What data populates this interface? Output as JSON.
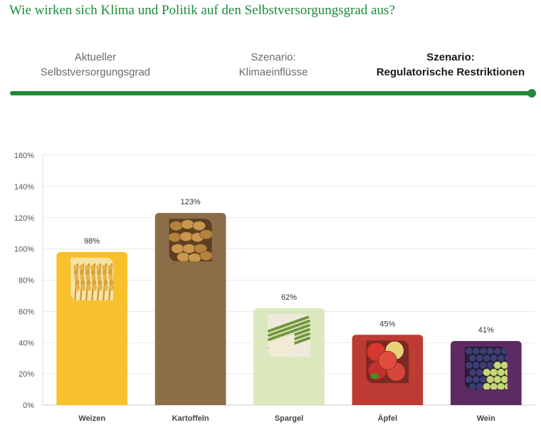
{
  "heading": "Wie wirken sich Klima und Politik auf den Selbstversorgungsgrad aus?",
  "steps": [
    {
      "line1": "Aktueller",
      "line2": "Selbstversorgungsgrad",
      "active": false
    },
    {
      "line1": "Szenario:",
      "line2": "Klimaeinflüsse",
      "active": false
    },
    {
      "line1": "Szenario:",
      "line2": "Regulatorische Restriktionen",
      "active": true
    }
  ],
  "progress": 1.0,
  "colors": {
    "accent": "#1f8a3c",
    "weizen": "#f8c02c",
    "kartoffeln": "#8b6d48",
    "spargel": "#dbe8be",
    "aepfel": "#bd3b32",
    "wein": "#5e2a62"
  },
  "chart_data": {
    "type": "bar",
    "categories": [
      "Weizen",
      "Kartoffeln",
      "Spargel",
      "Äpfel",
      "Wein"
    ],
    "values": [
      98,
      123,
      62,
      45,
      41
    ],
    "data_labels": [
      "98%",
      "123%",
      "62%",
      "45%",
      "41%"
    ],
    "bar_colors": [
      "#f8c02c",
      "#8b6d48",
      "#dbe8be",
      "#bd3b32",
      "#5e2a62"
    ],
    "bar_icons": [
      "wheat-image",
      "potato-image",
      "asparagus-image",
      "apple-image",
      "grape-image"
    ],
    "ylim": [
      0,
      160
    ],
    "yticks": [
      0,
      20,
      40,
      60,
      80,
      100,
      120,
      140,
      160
    ],
    "ytick_labels": [
      "0%",
      "20%",
      "40%",
      "60%",
      "80%",
      "100%",
      "120%",
      "140%",
      "160%"
    ],
    "grid": true,
    "title": "",
    "xlabel": "",
    "ylabel": ""
  }
}
